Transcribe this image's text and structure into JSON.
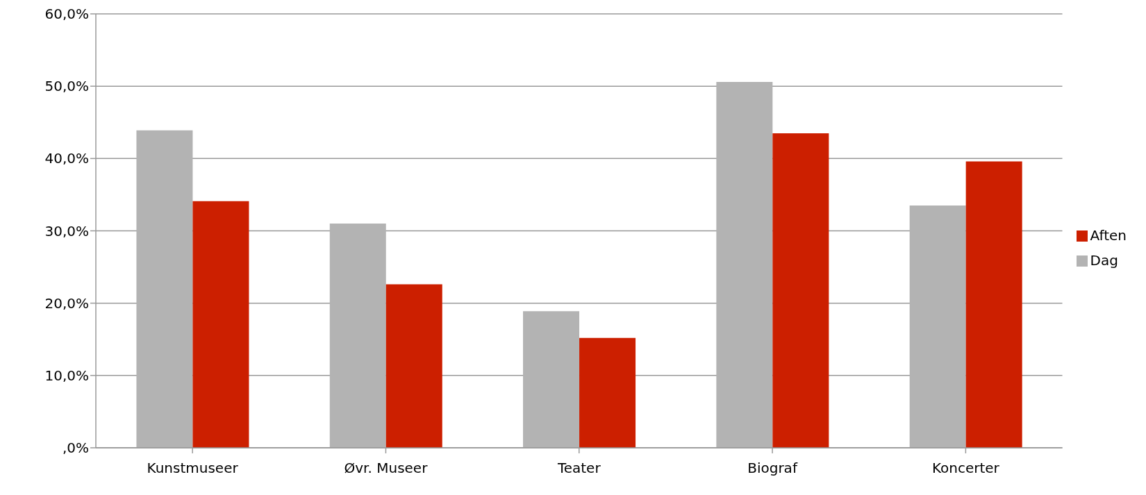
{
  "chart_data": {
    "type": "bar",
    "categories": [
      "Kunstmuseer",
      "Øvr. Museer",
      "Teater",
      "Biograf",
      "Koncerter"
    ],
    "series": [
      {
        "name": "Dag",
        "color": "#b3b3b3",
        "values": [
          43.9,
          31.0,
          18.9,
          50.6,
          33.5
        ]
      },
      {
        "name": "Aften",
        "color": "#cc1f00",
        "values": [
          34.1,
          22.6,
          15.2,
          43.5,
          39.6
        ]
      }
    ],
    "ylim": [
      0,
      60
    ],
    "yticks": [
      {
        "value": 0,
        "label": ",0%"
      },
      {
        "value": 10,
        "label": "10,0%"
      },
      {
        "value": 20,
        "label": "20,0%"
      },
      {
        "value": 30,
        "label": "30,0%"
      },
      {
        "value": 40,
        "label": "40,0%"
      },
      {
        "value": 50,
        "label": "50,0%"
      },
      {
        "value": 60,
        "label": "60,0%"
      }
    ],
    "grid": "y",
    "legend": "right"
  }
}
